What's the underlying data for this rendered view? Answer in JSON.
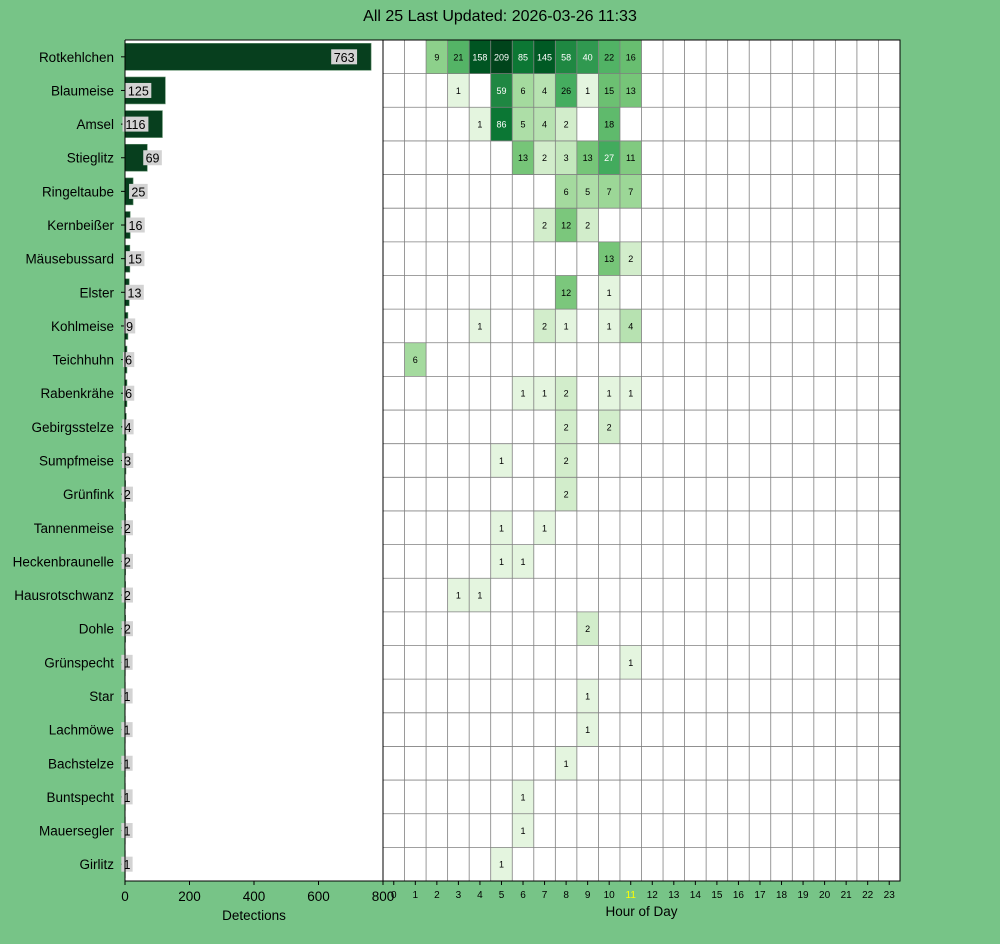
{
  "title": "All 25 Last Updated: 2026-03-26 11:33",
  "colors": {
    "background": "#77c487",
    "bar": "#073f1e",
    "bar_label_bg": "#d3d3d3",
    "highlight_hour": "#ffff00",
    "grid": "#808080"
  },
  "chart_data": [
    {
      "type": "bar",
      "orientation": "horizontal",
      "categories": [
        "Rotkehlchen",
        "Blaumeise",
        "Amsel",
        "Stieglitz",
        "Ringeltaube",
        "Kernbeißer",
        "Mäusebussard",
        "Elster",
        "Kohlmeise",
        "Teichhuhn",
        "Rabenkrähe",
        "Gebirgsstelze",
        "Sumpfmeise",
        "Grünfink",
        "Tannenmeise",
        "Heckenbraunelle",
        "Hausrotschwanz",
        "Dohle",
        "Grünspecht",
        "Star",
        "Lachmöwe",
        "Bachstelze",
        "Buntspecht",
        "Mauersegler",
        "Girlitz"
      ],
      "values": [
        763,
        125,
        116,
        69,
        25,
        16,
        15,
        13,
        9,
        6,
        6,
        4,
        3,
        2,
        2,
        2,
        2,
        2,
        1,
        1,
        1,
        1,
        1,
        1,
        1
      ],
      "xlabel": "Detections",
      "xlim": [
        0,
        800
      ],
      "xticks": [
        0,
        200,
        400,
        600,
        800
      ]
    },
    {
      "type": "heatmap",
      "x": [
        0,
        1,
        2,
        3,
        4,
        5,
        6,
        7,
        8,
        9,
        10,
        11,
        12,
        13,
        14,
        15,
        16,
        17,
        18,
        19,
        20,
        21,
        22,
        23
      ],
      "xlabel": "Hour of Day",
      "highlight_x": 11,
      "cells": [
        {
          "row": 0,
          "hour": 2,
          "v": 9
        },
        {
          "row": 0,
          "hour": 3,
          "v": 21
        },
        {
          "row": 0,
          "hour": 4,
          "v": 158
        },
        {
          "row": 0,
          "hour": 5,
          "v": 209
        },
        {
          "row": 0,
          "hour": 6,
          "v": 85
        },
        {
          "row": 0,
          "hour": 7,
          "v": 145
        },
        {
          "row": 0,
          "hour": 8,
          "v": 58
        },
        {
          "row": 0,
          "hour": 9,
          "v": 40
        },
        {
          "row": 0,
          "hour": 10,
          "v": 22
        },
        {
          "row": 0,
          "hour": 11,
          "v": 16
        },
        {
          "row": 1,
          "hour": 3,
          "v": 1
        },
        {
          "row": 1,
          "hour": 5,
          "v": 59
        },
        {
          "row": 1,
          "hour": 6,
          "v": 6
        },
        {
          "row": 1,
          "hour": 7,
          "v": 4
        },
        {
          "row": 1,
          "hour": 8,
          "v": 26
        },
        {
          "row": 1,
          "hour": 9,
          "v": 1
        },
        {
          "row": 1,
          "hour": 10,
          "v": 15
        },
        {
          "row": 1,
          "hour": 11,
          "v": 13
        },
        {
          "row": 2,
          "hour": 4,
          "v": 1
        },
        {
          "row": 2,
          "hour": 5,
          "v": 86
        },
        {
          "row": 2,
          "hour": 6,
          "v": 5
        },
        {
          "row": 2,
          "hour": 7,
          "v": 4
        },
        {
          "row": 2,
          "hour": 8,
          "v": 2
        },
        {
          "row": 2,
          "hour": 10,
          "v": 18
        },
        {
          "row": 3,
          "hour": 6,
          "v": 13
        },
        {
          "row": 3,
          "hour": 7,
          "v": 2
        },
        {
          "row": 3,
          "hour": 8,
          "v": 3
        },
        {
          "row": 3,
          "hour": 9,
          "v": 13
        },
        {
          "row": 3,
          "hour": 10,
          "v": 27
        },
        {
          "row": 3,
          "hour": 11,
          "v": 11
        },
        {
          "row": 4,
          "hour": 8,
          "v": 6
        },
        {
          "row": 4,
          "hour": 9,
          "v": 5
        },
        {
          "row": 4,
          "hour": 10,
          "v": 7
        },
        {
          "row": 4,
          "hour": 11,
          "v": 7
        },
        {
          "row": 5,
          "hour": 7,
          "v": 2
        },
        {
          "row": 5,
          "hour": 8,
          "v": 12
        },
        {
          "row": 5,
          "hour": 9,
          "v": 2
        },
        {
          "row": 6,
          "hour": 10,
          "v": 13
        },
        {
          "row": 6,
          "hour": 11,
          "v": 2
        },
        {
          "row": 7,
          "hour": 8,
          "v": 12
        },
        {
          "row": 7,
          "hour": 10,
          "v": 1
        },
        {
          "row": 8,
          "hour": 4,
          "v": 1
        },
        {
          "row": 8,
          "hour": 7,
          "v": 2
        },
        {
          "row": 8,
          "hour": 8,
          "v": 1
        },
        {
          "row": 8,
          "hour": 10,
          "v": 1
        },
        {
          "row": 8,
          "hour": 11,
          "v": 4
        },
        {
          "row": 9,
          "hour": 1,
          "v": 6
        },
        {
          "row": 10,
          "hour": 6,
          "v": 1
        },
        {
          "row": 10,
          "hour": 7,
          "v": 1
        },
        {
          "row": 10,
          "hour": 8,
          "v": 2
        },
        {
          "row": 10,
          "hour": 10,
          "v": 1
        },
        {
          "row": 10,
          "hour": 11,
          "v": 1
        },
        {
          "row": 11,
          "hour": 8,
          "v": 2
        },
        {
          "row": 11,
          "hour": 10,
          "v": 2
        },
        {
          "row": 12,
          "hour": 5,
          "v": 1
        },
        {
          "row": 12,
          "hour": 8,
          "v": 2
        },
        {
          "row": 13,
          "hour": 8,
          "v": 2
        },
        {
          "row": 14,
          "hour": 5,
          "v": 1
        },
        {
          "row": 14,
          "hour": 7,
          "v": 1
        },
        {
          "row": 15,
          "hour": 5,
          "v": 1
        },
        {
          "row": 15,
          "hour": 6,
          "v": 1
        },
        {
          "row": 16,
          "hour": 3,
          "v": 1
        },
        {
          "row": 16,
          "hour": 4,
          "v": 1
        },
        {
          "row": 17,
          "hour": 9,
          "v": 2
        },
        {
          "row": 18,
          "hour": 11,
          "v": 1
        },
        {
          "row": 19,
          "hour": 9,
          "v": 1
        },
        {
          "row": 20,
          "hour": 9,
          "v": 1
        },
        {
          "row": 21,
          "hour": 8,
          "v": 1
        },
        {
          "row": 22,
          "hour": 6,
          "v": 1
        },
        {
          "row": 23,
          "hour": 6,
          "v": 1
        },
        {
          "row": 24,
          "hour": 5,
          "v": 1
        }
      ]
    }
  ]
}
